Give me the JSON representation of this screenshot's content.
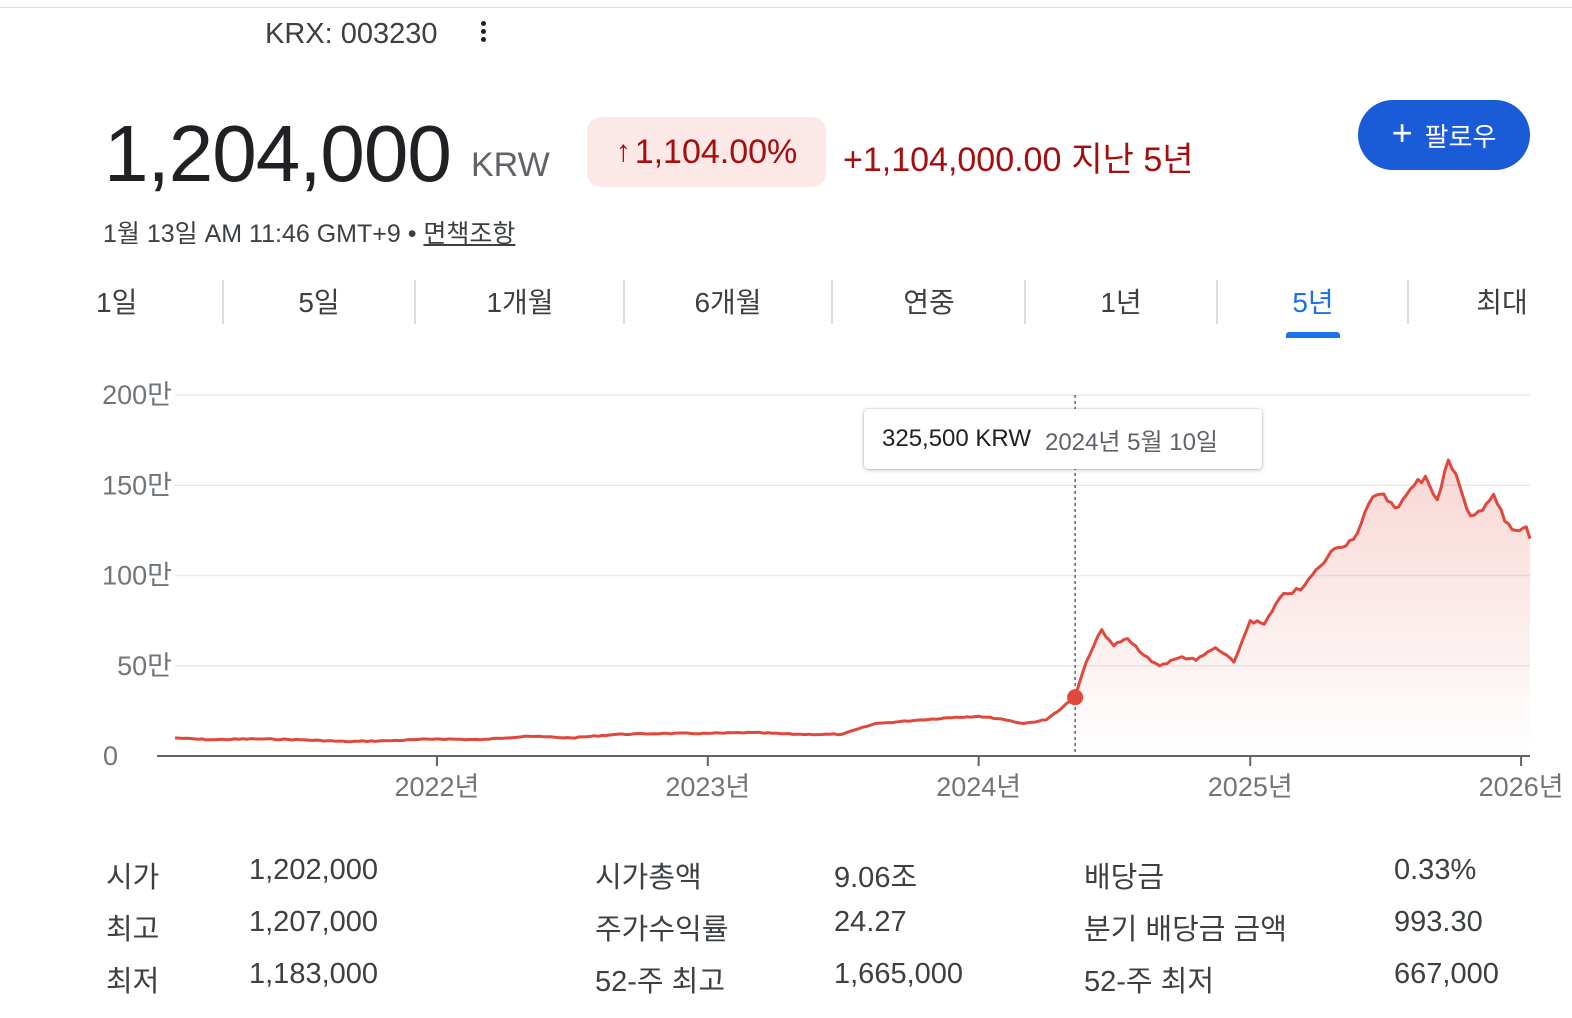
{
  "header": {
    "ticker": "KRX: 003230",
    "price": "1,204,000",
    "currency": "KRW",
    "change_pct": "1,104.00%",
    "change_abs": "+1,104,000.00",
    "change_period": "지난 5년",
    "follow_label": "팔로우",
    "timestamp": "1월 13일 AM 11:46 GMT+9 •",
    "disclaimer": "면책조항"
  },
  "tabs": [
    "1일",
    "5일",
    "1개월",
    "6개월",
    "연중",
    "1년",
    "5년",
    "최대"
  ],
  "active_tab": "5년",
  "tooltip": {
    "price": "325,500 KRW",
    "date": "2024년 5월 10일"
  },
  "colors": {
    "line": "#e0483c",
    "fill": "#e0483c",
    "accent": "#1a73e8",
    "down_pill": "#fce8e6",
    "change_text": "#a50e0e",
    "follow_button": "#1a5bd8"
  },
  "chart_data": {
    "type": "area",
    "y_ticks": [
      "200만",
      "150만",
      "100만",
      "50만",
      "0"
    ],
    "y_tick_values": [
      2000000,
      1500000,
      1000000,
      500000,
      0
    ],
    "ylim": [
      0,
      2000000
    ],
    "x_ticks": [
      "2022년",
      "2023년",
      "2024년",
      "2025년",
      "2026년"
    ],
    "x_tick_values": [
      "2022-01-01",
      "2023-01-01",
      "2024-01-01",
      "2025-01-01",
      "2026-01-01"
    ],
    "xlim": [
      "2021-01-13",
      "2026-01-13"
    ],
    "grid": true,
    "highlight_point": {
      "x": "2024-05-10",
      "y": 325500
    },
    "series": [
      {
        "x": [
          "2021-01-13",
          "2021-03-01",
          "2021-05-01",
          "2021-07-01",
          "2021-09-01",
          "2021-11-01",
          "2022-01-01",
          "2022-03-01",
          "2022-05-01",
          "2022-07-01",
          "2022-09-01",
          "2022-11-01",
          "2023-01-01",
          "2023-03-01",
          "2023-05-01",
          "2023-07-01",
          "2023-08-15",
          "2023-09-01",
          "2023-10-15",
          "2023-12-01",
          "2024-01-01",
          "2024-02-01",
          "2024-03-01",
          "2024-04-01",
          "2024-05-10",
          "2024-05-25",
          "2024-06-15",
          "2024-07-01",
          "2024-07-20",
          "2024-08-10",
          "2024-09-01",
          "2024-10-01",
          "2024-10-20",
          "2024-11-15",
          "2024-12-10",
          "2025-01-01",
          "2025-01-20",
          "2025-02-15",
          "2025-03-10",
          "2025-04-05",
          "2025-04-25",
          "2025-05-20",
          "2025-06-10",
          "2025-06-25",
          "2025-07-20",
          "2025-08-10",
          "2025-08-25",
          "2025-09-10",
          "2025-09-25",
          "2025-10-10",
          "2025-10-25",
          "2025-11-10",
          "2025-11-25",
          "2025-12-10",
          "2025-12-25",
          "2026-01-08",
          "2026-01-13"
        ],
        "y": [
          100000,
          90000,
          95000,
          90000,
          80000,
          85000,
          95000,
          90000,
          110000,
          100000,
          120000,
          125000,
          125000,
          130000,
          120000,
          120000,
          180000,
          185000,
          200000,
          215000,
          220000,
          205000,
          180000,
          200000,
          325500,
          520000,
          700000,
          610000,
          650000,
          560000,
          500000,
          550000,
          530000,
          600000,
          520000,
          750000,
          730000,
          900000,
          920000,
          1050000,
          1150000,
          1200000,
          1400000,
          1450000,
          1380000,
          1500000,
          1550000,
          1420000,
          1640000,
          1500000,
          1330000,
          1360000,
          1450000,
          1300000,
          1250000,
          1270000,
          1204000
        ]
      }
    ]
  },
  "stats": [
    [
      {
        "label": "시가",
        "value": "1,202,000"
      },
      {
        "label": "시가총액",
        "value": "9.06조"
      },
      {
        "label": "배당금",
        "value": "0.33%"
      }
    ],
    [
      {
        "label": "최고",
        "value": "1,207,000"
      },
      {
        "label": "주가수익률",
        "value": "24.27"
      },
      {
        "label": "분기 배당금 금액",
        "value": "993.30"
      }
    ],
    [
      {
        "label": "최저",
        "value": "1,183,000"
      },
      {
        "label": "52-주 최고",
        "value": "1,665,000"
      },
      {
        "label": "52-주 최저",
        "value": "667,000"
      }
    ]
  ]
}
